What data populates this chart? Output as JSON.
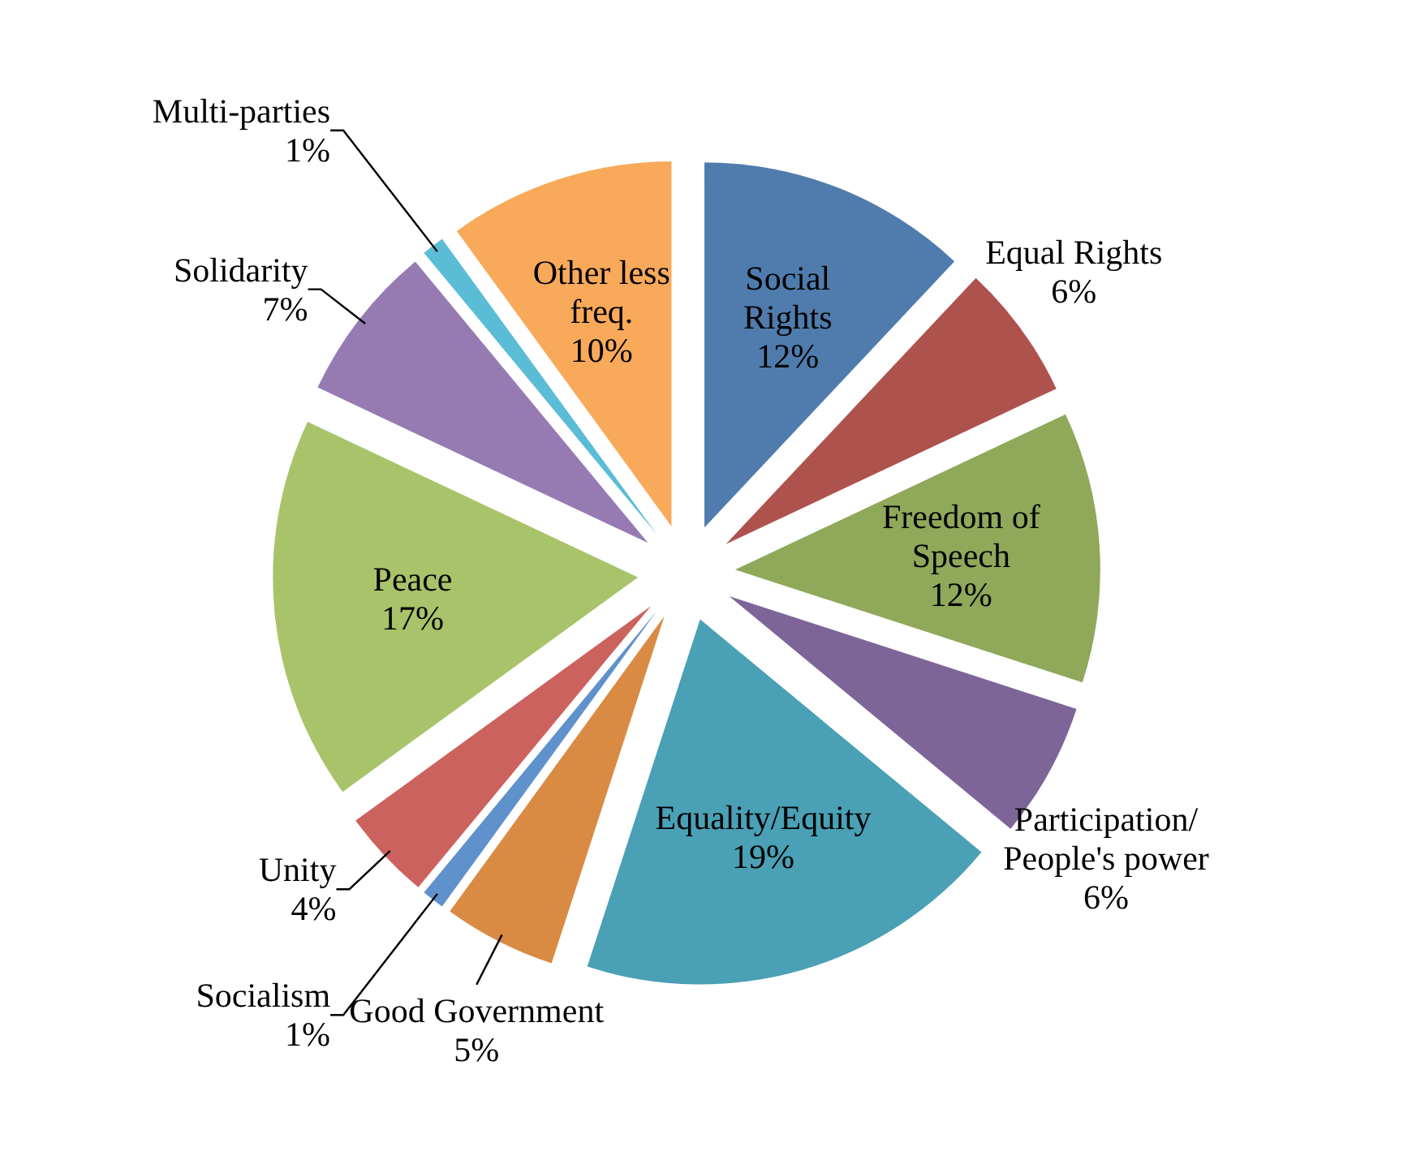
{
  "chart_data": {
    "type": "pie",
    "categories": [
      "Social Rights",
      "Equal Rights",
      "Freedom of Speech",
      "Participation/ People's power",
      "Equality/Equity",
      "Good Government",
      "Socialism",
      "Unity",
      "Peace",
      "Solidarity",
      "Multi-parties",
      "Other less freq."
    ],
    "values": [
      12,
      6,
      12,
      6,
      19,
      5,
      1,
      4,
      17,
      7,
      1,
      10
    ],
    "value_labels": [
      "12%",
      "6%",
      "12%",
      "6%",
      "19%",
      "5%",
      "1%",
      "4%",
      "17%",
      "7%",
      "1%",
      "10%"
    ],
    "colors": [
      "#4f7cac",
      "#ae524e",
      "#8fa85a",
      "#7d6598",
      "#4aa0b5",
      "#d98b43",
      "#5f91cc",
      "#cc625e",
      "#a9c36a",
      "#967bb3",
      "#5bbcd6",
      "#f8a95a"
    ]
  }
}
